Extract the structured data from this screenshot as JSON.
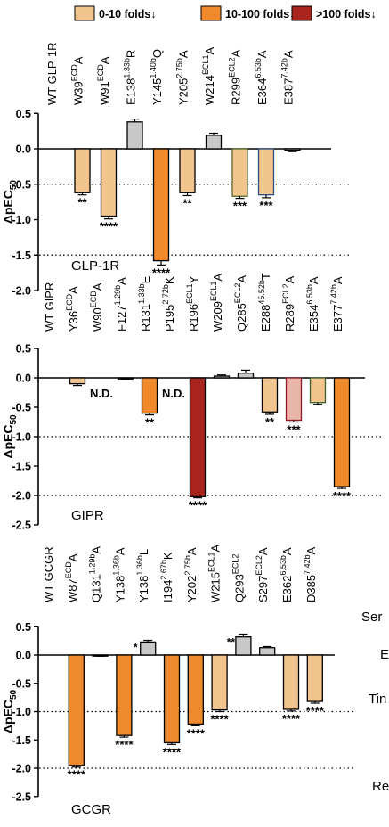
{
  "legend": [
    {
      "label": "0-10 folds↓",
      "color": "#F2C48E"
    },
    {
      "label": "10-100 folds↓",
      "color": "#F08A2C"
    },
    {
      "label": ">100 folds↓",
      "color": "#A8241C"
    }
  ],
  "colors": {
    "gray": "#C8C8C8",
    "bar_edge": "#000000"
  },
  "chart_data": [
    {
      "type": "bar",
      "panel_label": "GLP-1R",
      "ylabel": "ΔpEC50",
      "ylim": [
        -2.0,
        0.5
      ],
      "yticks": [
        "0.5",
        "0.0",
        "-0.5",
        "-1.0",
        "-1.5",
        "-2.0"
      ],
      "reference_lines": [
        -0.5,
        -1.5
      ],
      "categories": [
        {
          "base": "WT GLP-1R",
          "sup": "",
          "suffix": ""
        },
        {
          "base": "W39",
          "sup": "ECD",
          "suffix": "A"
        },
        {
          "base": "W91",
          "sup": "ECD",
          "suffix": "A"
        },
        {
          "base": "E138",
          "sup": "1.33b",
          "suffix": "R"
        },
        {
          "base": "Y145",
          "sup": "1.40b",
          "suffix": "Q"
        },
        {
          "base": "Y205",
          "sup": "2.75b",
          "suffix": "A"
        },
        {
          "base": "W214",
          "sup": "ECL1",
          "suffix": "A"
        },
        {
          "base": "R299",
          "sup": "ECL2",
          "suffix": "A"
        },
        {
          "base": "E364",
          "sup": "6.53b",
          "suffix": "A"
        },
        {
          "base": "E387",
          "sup": "7.42b",
          "suffix": "A"
        }
      ],
      "values": [
        null,
        -0.62,
        -0.95,
        0.38,
        -1.58,
        -0.62,
        0.19,
        -0.67,
        -0.65,
        -0.02
      ],
      "errors": [
        0,
        0.03,
        0.04,
        0.04,
        0.06,
        0.04,
        0.03,
        0.03,
        0.04,
        0.02
      ],
      "bar_colors": [
        "",
        "#F2C48E",
        "#F2C48E",
        "#C8C8C8",
        "#F08A2C",
        "#F2C48E",
        "#C8C8C8",
        "#F2C48E",
        "#F2C48E",
        "#C8C8C8"
      ],
      "edge_colors": [
        "",
        "#000000",
        "#000000",
        "#000000",
        "#000000",
        "#000000",
        "#000000",
        "#556B2F",
        "#2F4F7F",
        "#000000"
      ],
      "significance": [
        "",
        "**",
        "****",
        "",
        "****",
        "**",
        "",
        "***",
        "***",
        ""
      ],
      "nd_labels": []
    },
    {
      "type": "bar",
      "panel_label": "GIPR",
      "ylabel": "ΔpEC50",
      "ylim": [
        -2.5,
        0.5
      ],
      "yticks": [
        "0.5",
        "0.0",
        "-0.5",
        "-1.0",
        "-1.5",
        "-2.0",
        "-2.5"
      ],
      "reference_lines": [
        -1.0,
        -2.0
      ],
      "categories": [
        {
          "base": "WT GIPR",
          "sup": "",
          "suffix": ""
        },
        {
          "base": "Y36",
          "sup": "ECD",
          "suffix": "A"
        },
        {
          "base": "W90",
          "sup": "ECD",
          "suffix": "A"
        },
        {
          "base": "F127",
          "sup": "1.29b",
          "suffix": "A"
        },
        {
          "base": "R131",
          "sup": "1.33b",
          "suffix": "E"
        },
        {
          "base": "P195",
          "sup": "2.72b",
          "suffix": "K"
        },
        {
          "base": "R196",
          "sup": "ECL1",
          "suffix": "Y"
        },
        {
          "base": "W209",
          "sup": "ECL1",
          "suffix": "A"
        },
        {
          "base": "Q285",
          "sup": "ECL2",
          "suffix": "A"
        },
        {
          "base": "E288",
          "sup": "45.52b",
          "suffix": "T"
        },
        {
          "base": "R289",
          "sup": "ECL2",
          "suffix": "A"
        },
        {
          "base": "E354",
          "sup": "6.53b",
          "suffix": "A"
        },
        {
          "base": "E377",
          "sup": "7.42b",
          "suffix": "A"
        }
      ],
      "values": [
        null,
        -0.1,
        null,
        -0.01,
        -0.6,
        null,
        -2.02,
        0.03,
        0.08,
        -0.58,
        -0.72,
        -0.42,
        -1.85
      ],
      "errors": [
        0,
        0.03,
        0,
        0.01,
        0.03,
        0,
        0.02,
        0.02,
        0.05,
        0.04,
        0.03,
        0.03,
        0.03
      ],
      "bar_colors": [
        "",
        "#F2C48E",
        "",
        "#C8C8C8",
        "#F08A2C",
        "",
        "#A8241C",
        "#C8C8C8",
        "#C8C8C8",
        "#F2C48E",
        "#E8B5A8",
        "#F2C48E",
        "#F08A2C"
      ],
      "edge_colors": [
        "",
        "#000000",
        "",
        "#000000",
        "#000000",
        "",
        "#000000",
        "#000000",
        "#000000",
        "#000000",
        "#8B1A2A",
        "#3B5E2B",
        "#000000"
      ],
      "significance": [
        "",
        "",
        "",
        "",
        "**",
        "",
        "****",
        "",
        "",
        "**",
        "***",
        "",
        "****"
      ],
      "nd_labels": [
        {
          "index": 2,
          "text": "N.D."
        },
        {
          "index": 5,
          "text": "N.D."
        }
      ]
    },
    {
      "type": "bar",
      "panel_label": "GCGR",
      "ylabel": "ΔpEC50",
      "ylim": [
        -2.5,
        0.5
      ],
      "yticks": [
        "0.5",
        "0.0",
        "-0.5",
        "-1.0",
        "-1.5",
        "-2.0",
        "-2.5"
      ],
      "reference_lines": [
        -1.0,
        -2.0
      ],
      "categories": [
        {
          "base": "WT GCGR",
          "sup": "",
          "suffix": ""
        },
        {
          "base": "W87",
          "sup": "ECD",
          "suffix": "A"
        },
        {
          "base": "Q131",
          "sup": "1.29b",
          "suffix": "A"
        },
        {
          "base": "Y138",
          "sup": "1.36b",
          "suffix": "A"
        },
        {
          "base": "Y138",
          "sup": "1.36b",
          "suffix": "L"
        },
        {
          "base": "I194",
          "sup": "2.67b",
          "suffix": "K"
        },
        {
          "base": "Y202",
          "sup": "2.75b",
          "suffix": "A"
        },
        {
          "base": "W215",
          "sup": "ECL1",
          "suffix": "A"
        },
        {
          "base": "Q293",
          "sup": "ECL2",
          "suffix": ""
        },
        {
          "base": "S297",
          "sup": "ECL2",
          "suffix": "A"
        },
        {
          "base": "E362",
          "sup": "6.53b",
          "suffix": "A"
        },
        {
          "base": "D385",
          "sup": "7.42b",
          "suffix": "A"
        }
      ],
      "values": [
        null,
        -1.95,
        -0.01,
        -1.42,
        0.23,
        -1.55,
        -1.22,
        -0.97,
        0.32,
        0.13,
        -0.96,
        -0.82
      ],
      "errors": [
        0,
        0.03,
        0.01,
        0.03,
        0.03,
        0.03,
        0.03,
        0.03,
        0.05,
        0.02,
        0.03,
        0.03
      ],
      "bar_colors": [
        "",
        "#F08A2C",
        "#C8C8C8",
        "#F08A2C",
        "#C8C8C8",
        "#F08A2C",
        "#F08A2C",
        "#F2C48E",
        "#C8C8C8",
        "#C8C8C8",
        "#F2C48E",
        "#F2C48E"
      ],
      "edge_colors": [
        "",
        "#000000",
        "#000000",
        "#000000",
        "#000000",
        "#000000",
        "#000000",
        "#000000",
        "#000000",
        "#000000",
        "#000000",
        "#000000"
      ],
      "significance_below": [
        "",
        "****",
        "",
        "****",
        "",
        "****",
        "****",
        "****",
        "",
        "",
        "****",
        "****"
      ],
      "significance_above": [
        "",
        "",
        "",
        "",
        "*",
        "",
        "",
        "",
        "**",
        "",
        "",
        ""
      ],
      "nd_labels": []
    }
  ],
  "side_labels": [
    "Ser",
    "E",
    "Tin",
    "Re"
  ]
}
